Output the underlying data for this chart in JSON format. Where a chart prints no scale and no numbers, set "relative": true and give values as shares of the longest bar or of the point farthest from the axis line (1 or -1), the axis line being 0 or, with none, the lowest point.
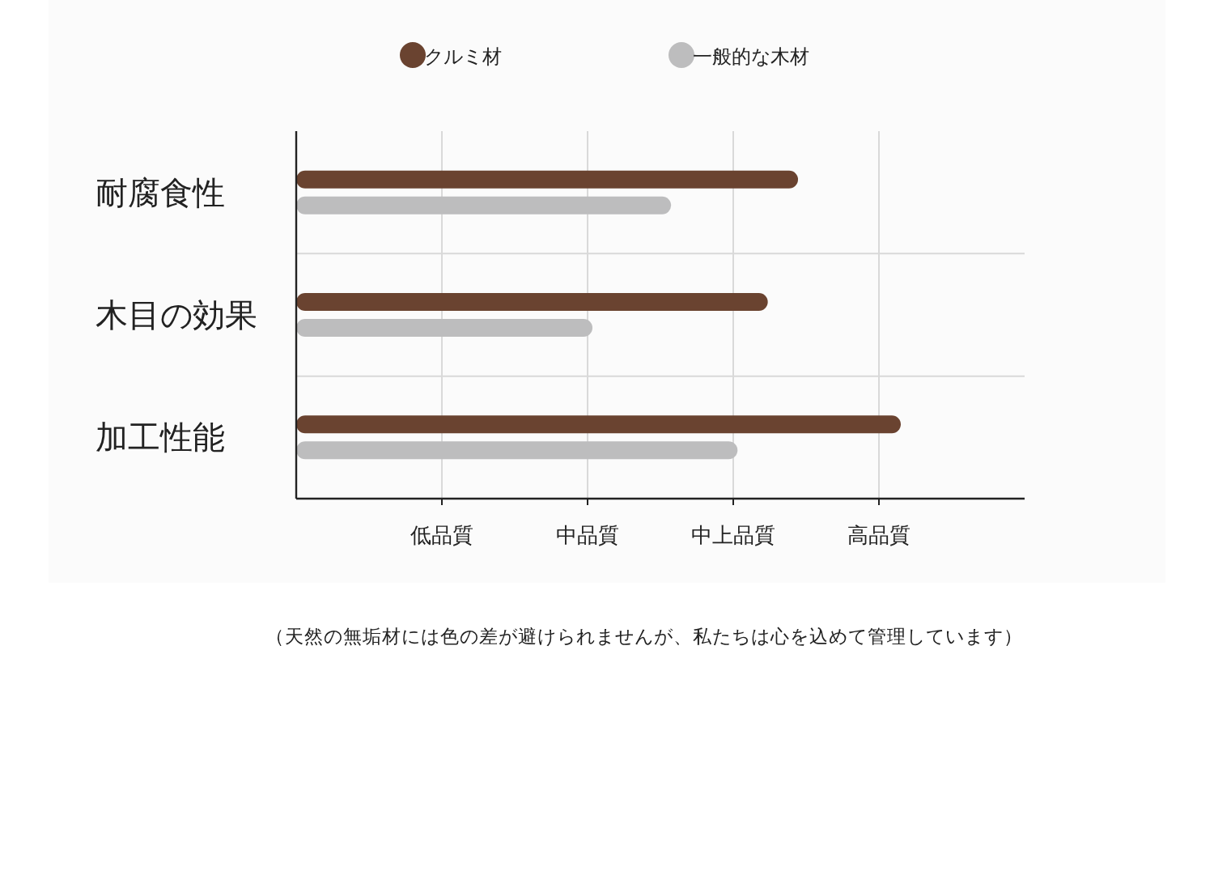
{
  "chart_data": {
    "type": "bar",
    "orientation": "horizontal",
    "relative": true,
    "categories": [
      "耐腐食性",
      "木目の効果",
      "加工性能"
    ],
    "series": [
      {
        "name": "クルミ材",
        "color": "#6a4330",
        "values": [
          0.83,
          0.78,
          1
        ]
      },
      {
        "name": "一般的な木材",
        "color": "#bdbdbe",
        "values": [
          0.62,
          0.49,
          0.73
        ]
      }
    ],
    "grid": true,
    "legend": "top",
    "annotations": [
      "低品質",
      "中品質",
      "中上品質",
      "高品質",
      "（天然の無垢材には色の差が避けられませんが、私たちは心を込めて管理しています）"
    ]
  }
}
